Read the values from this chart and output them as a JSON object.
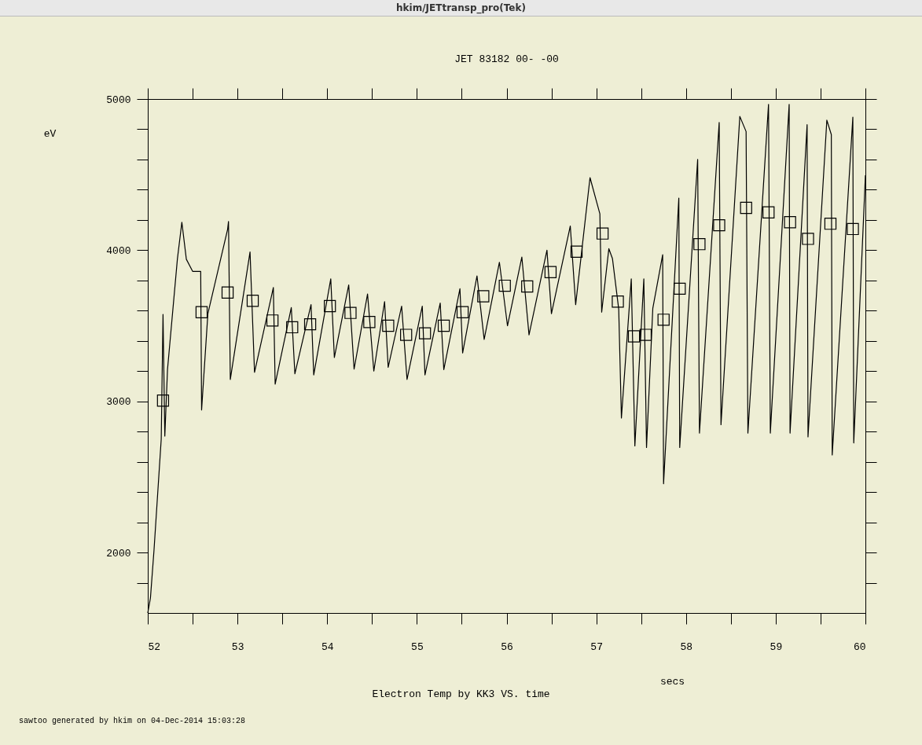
{
  "chart_data": {
    "type": "line",
    "title": "JET 83182 00- -00",
    "xlabel": "secs",
    "ylabel": "eV",
    "annotations": [
      "hkim/JETtransp_pro(Tek)",
      "Electron Temp by KK3 VS. time",
      "sawtoo generated by hkim on 04-Dec-2014 15:03:28"
    ],
    "xlim": [
      52,
      60
    ],
    "ylim": [
      1600,
      5000
    ],
    "xticks": [
      52,
      {
        "value": 52.5,
        "label": null
      },
      53,
      {
        "value": 53.5,
        "label": null
      },
      54,
      {
        "value": 54.5,
        "label": null
      },
      55,
      {
        "value": 55.5,
        "label": null
      },
      56,
      {
        "value": 56.5,
        "label": null
      },
      57,
      {
        "value": 57.5,
        "label": null
      },
      58,
      {
        "value": 58.5,
        "label": null
      },
      59,
      {
        "value": 59.5,
        "label": null
      },
      60
    ],
    "yticks": [
      {
        "value": 1800,
        "label": null
      },
      2000,
      {
        "value": 2200,
        "label": null
      },
      {
        "value": 2400,
        "label": null
      },
      {
        "value": 2600,
        "label": null
      },
      {
        "value": 2800,
        "label": null
      },
      3000,
      {
        "value": 3200,
        "label": null
      },
      {
        "value": 3400,
        "label": null
      },
      {
        "value": 3600,
        "label": null
      },
      {
        "value": 3800,
        "label": null
      },
      4000,
      {
        "value": 4200,
        "label": null
      },
      {
        "value": 4400,
        "label": null
      },
      {
        "value": 4600,
        "label": null
      },
      {
        "value": 4800,
        "label": null
      },
      5000
    ],
    "grid": false,
    "line_style": "solid",
    "series": [
      {
        "type": "line",
        "color": "#000000",
        "marker": "none",
        "x": [
          52.0,
          52.03,
          52.07,
          52.15,
          52.17,
          52.19,
          52.22,
          52.33,
          52.38,
          52.43,
          52.5,
          52.59,
          52.6,
          52.67,
          52.89,
          52.9,
          52.92,
          53.14,
          53.19,
          53.4,
          53.42,
          53.6,
          53.64,
          53.82,
          53.85,
          54.04,
          54.08,
          54.24,
          54.3,
          54.45,
          54.52,
          54.64,
          54.68,
          54.83,
          54.89,
          55.06,
          55.09,
          55.26,
          55.3,
          55.48,
          55.51,
          55.67,
          55.75,
          55.92,
          56.01,
          56.17,
          56.25,
          56.45,
          56.5,
          56.71,
          56.77,
          56.93,
          57.04,
          57.06,
          57.14,
          57.18,
          57.25,
          57.28,
          57.39,
          57.43,
          57.53,
          57.56,
          57.63,
          57.74,
          57.75,
          57.92,
          57.93,
          58.13,
          58.15,
          58.37,
          58.39,
          58.6,
          58.67,
          58.69,
          58.92,
          58.94,
          59.15,
          59.16,
          59.35,
          59.36,
          59.57,
          59.62,
          59.63,
          59.86,
          59.87,
          60.0
        ],
        "values": [
          1600,
          1700,
          2020,
          2750,
          3575,
          2770,
          3210,
          3940,
          4185,
          3940,
          3860,
          3860,
          2943,
          3580,
          4138,
          4190,
          3145,
          3988,
          3192,
          3753,
          3114,
          3620,
          3182,
          3640,
          3175,
          3810,
          3290,
          3770,
          3213,
          3710,
          3200,
          3660,
          3225,
          3630,
          3145,
          3630,
          3175,
          3650,
          3210,
          3745,
          3320,
          3830,
          3410,
          3920,
          3500,
          3955,
          3440,
          4000,
          3580,
          4160,
          3640,
          4480,
          4240,
          3590,
          4010,
          3945,
          3610,
          2890,
          3810,
          2705,
          3810,
          2695,
          3615,
          3970,
          2455,
          4345,
          2695,
          4600,
          2790,
          4845,
          2845,
          4885,
          4785,
          2790,
          4965,
          2790,
          4965,
          2790,
          4830,
          2765,
          4860,
          4765,
          2645,
          4880,
          2725,
          4495
        ]
      },
      {
        "type": "scatter",
        "color": "#000000",
        "marker": "square",
        "x": [
          52.17,
          52.6,
          52.89,
          53.17,
          53.39,
          53.61,
          53.81,
          54.03,
          54.26,
          54.47,
          54.68,
          54.88,
          55.09,
          55.3,
          55.51,
          55.74,
          55.98,
          56.23,
          56.49,
          56.78,
          57.07,
          57.24,
          57.42,
          57.55,
          57.75,
          57.93,
          58.15,
          58.37,
          58.67,
          58.92,
          59.16,
          59.36,
          59.61,
          59.86
        ],
        "values": [
          3005,
          3590,
          3720,
          3665,
          3535,
          3490,
          3510,
          3630,
          3585,
          3525,
          3500,
          3440,
          3450,
          3500,
          3590,
          3695,
          3765,
          3760,
          3855,
          3990,
          4110,
          3660,
          3430,
          3440,
          3540,
          3745,
          4040,
          4165,
          4280,
          4250,
          4185,
          4075,
          4175,
          4140
        ]
      }
    ]
  }
}
